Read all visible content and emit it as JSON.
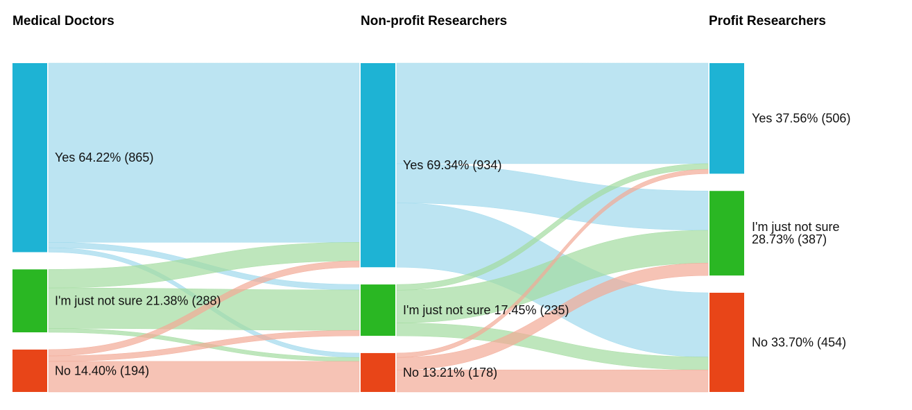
{
  "chart_data": {
    "type": "sankey",
    "title": "",
    "columns": [
      {
        "title": "Medical Doctors",
        "nodes": [
          {
            "id": "md_yes",
            "label": "Yes 64.22% (865)",
            "category": "Yes",
            "value": 865,
            "percent": 64.22
          },
          {
            "id": "md_ns",
            "label": "I'm just not sure 21.38% (288)",
            "category": "I'm just not sure",
            "value": 288,
            "percent": 21.38
          },
          {
            "id": "md_no",
            "label": "No 14.40% (194)",
            "category": "No",
            "value": 194,
            "percent": 14.4
          }
        ]
      },
      {
        "title": "Non-profit Researchers",
        "nodes": [
          {
            "id": "np_yes",
            "label": "Yes 69.34% (934)",
            "category": "Yes",
            "value": 934,
            "percent": 69.34
          },
          {
            "id": "np_ns",
            "label": "I'm just not sure 17.45% (235)",
            "category": "I'm just not sure",
            "value": 235,
            "percent": 17.45
          },
          {
            "id": "np_no",
            "label": "No 13.21% (178)",
            "category": "No",
            "value": 178,
            "percent": 13.21
          }
        ]
      },
      {
        "title": "Profit Researchers",
        "nodes": [
          {
            "id": "pr_yes",
            "label": "Yes 37.56% (506)",
            "label_lines": [
              "Yes 37.56% (506)"
            ],
            "category": "Yes",
            "value": 506,
            "percent": 37.56
          },
          {
            "id": "pr_ns",
            "label": "I'm just not sure 28.73% (387)",
            "label_lines": [
              "I'm just not sure",
              "28.73% (387)"
            ],
            "category": "I'm just not sure",
            "value": 387,
            "percent": 28.73
          },
          {
            "id": "pr_no",
            "label": "No 33.70% (454)",
            "label_lines": [
              "No 33.70% (454)"
            ],
            "category": "No",
            "value": 454,
            "percent": 33.7
          }
        ]
      }
    ],
    "links": [
      {
        "source": "md_yes",
        "target": "np_yes",
        "value": 820
      },
      {
        "source": "md_yes",
        "target": "np_ns",
        "value": 25
      },
      {
        "source": "md_yes",
        "target": "np_no",
        "value": 20
      },
      {
        "source": "md_ns",
        "target": "np_yes",
        "value": 85
      },
      {
        "source": "md_ns",
        "target": "np_ns",
        "value": 185
      },
      {
        "source": "md_ns",
        "target": "np_no",
        "value": 18
      },
      {
        "source": "md_no",
        "target": "np_yes",
        "value": 29
      },
      {
        "source": "md_no",
        "target": "np_ns",
        "value": 25
      },
      {
        "source": "md_no",
        "target": "np_no",
        "value": 140
      },
      {
        "source": "np_yes",
        "target": "pr_yes",
        "value": 460
      },
      {
        "source": "np_yes",
        "target": "pr_ns",
        "value": 180
      },
      {
        "source": "np_yes",
        "target": "pr_no",
        "value": 294
      },
      {
        "source": "np_ns",
        "target": "pr_yes",
        "value": 26
      },
      {
        "source": "np_ns",
        "target": "pr_ns",
        "value": 150
      },
      {
        "source": "np_ns",
        "target": "pr_no",
        "value": 59
      },
      {
        "source": "np_no",
        "target": "pr_yes",
        "value": 20
      },
      {
        "source": "np_no",
        "target": "pr_ns",
        "value": 57
      },
      {
        "source": "np_no",
        "target": "pr_no",
        "value": 101
      }
    ],
    "colors": {
      "Yes": "#1eb3d4",
      "I'm just not sure": "#2ab723",
      "No": "#e84518",
      "Yes_link": "#9fd9ec",
      "I'm just not sure_link": "#a3dca0",
      "No_link": "#f2a996"
    }
  }
}
